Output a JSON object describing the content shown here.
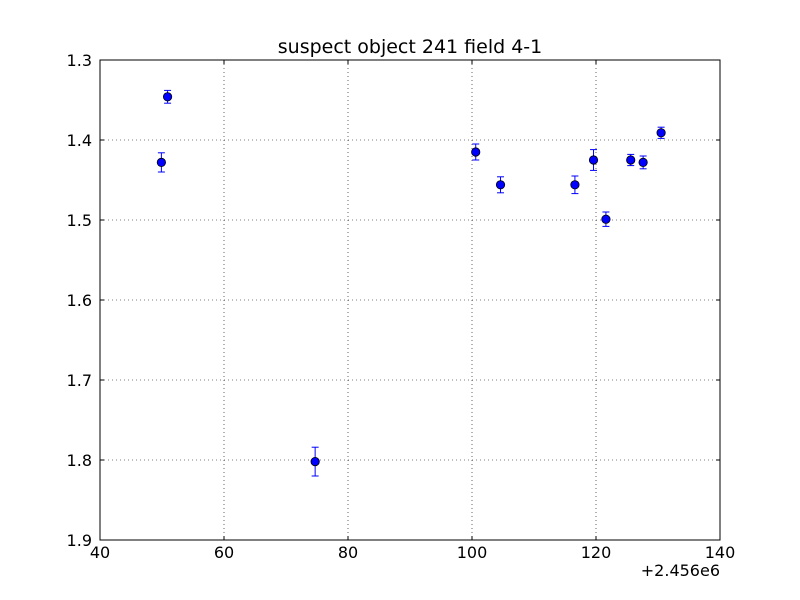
{
  "chart_data": {
    "type": "scatter",
    "title": "suspect object 241 field 4-1",
    "xlabel": "",
    "ylabel": "",
    "x_offset_label": "+2.456e6",
    "xlim": [
      40,
      140
    ],
    "ylim": [
      1.3,
      1.9
    ],
    "y_inverted": true,
    "grid": true,
    "x_ticks": [
      "40",
      "60",
      "80",
      "100",
      "120",
      "140"
    ],
    "y_ticks": [
      "1.3",
      "1.4",
      "1.5",
      "1.6",
      "1.7",
      "1.8",
      "1.9"
    ],
    "marker_color": "#0000ff",
    "errorbar_color": "#0000ff",
    "points": [
      {
        "x": 49.9,
        "y": 1.428,
        "err": 0.012
      },
      {
        "x": 50.9,
        "y": 1.346,
        "err": 0.008
      },
      {
        "x": 74.7,
        "y": 1.802,
        "err": 0.018
      },
      {
        "x": 100.6,
        "y": 1.415,
        "err": 0.01
      },
      {
        "x": 104.6,
        "y": 1.456,
        "err": 0.01
      },
      {
        "x": 116.6,
        "y": 1.456,
        "err": 0.011
      },
      {
        "x": 119.6,
        "y": 1.425,
        "err": 0.013
      },
      {
        "x": 121.6,
        "y": 1.499,
        "err": 0.009
      },
      {
        "x": 125.6,
        "y": 1.425,
        "err": 0.007
      },
      {
        "x": 127.6,
        "y": 1.428,
        "err": 0.008
      },
      {
        "x": 130.5,
        "y": 1.391,
        "err": 0.007
      }
    ]
  }
}
